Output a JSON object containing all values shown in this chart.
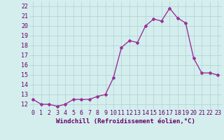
{
  "x": [
    0,
    1,
    2,
    3,
    4,
    5,
    6,
    7,
    8,
    9,
    10,
    11,
    12,
    13,
    14,
    15,
    16,
    17,
    18,
    19,
    20,
    21,
    22,
    23
  ],
  "y": [
    12.5,
    12.0,
    12.0,
    11.8,
    12.0,
    12.5,
    12.5,
    12.5,
    12.8,
    13.0,
    14.7,
    17.8,
    18.5,
    18.3,
    20.0,
    20.7,
    20.5,
    21.8,
    20.8,
    20.3,
    16.7,
    15.2,
    15.2,
    15.0
  ],
  "line_color": "#993399",
  "marker": "D",
  "marker_size": 2.0,
  "line_width": 1.0,
  "bg_color": "#d4eeee",
  "grid_color": "#b0d0d0",
  "xlabel": "Windchill (Refroidissement éolien,°C)",
  "xlabel_fontsize": 6.5,
  "ylabel_ticks": [
    12,
    13,
    14,
    15,
    16,
    17,
    18,
    19,
    20,
    21,
    22
  ],
  "xlim": [
    -0.5,
    23.5
  ],
  "ylim": [
    11.5,
    22.5
  ],
  "xtick_labels": [
    "0",
    "1",
    "2",
    "3",
    "4",
    "5",
    "6",
    "7",
    "8",
    "9",
    "10",
    "11",
    "12",
    "13",
    "14",
    "15",
    "16",
    "17",
    "18",
    "19",
    "20",
    "21",
    "22",
    "23"
  ],
  "tick_fontsize": 6.0
}
